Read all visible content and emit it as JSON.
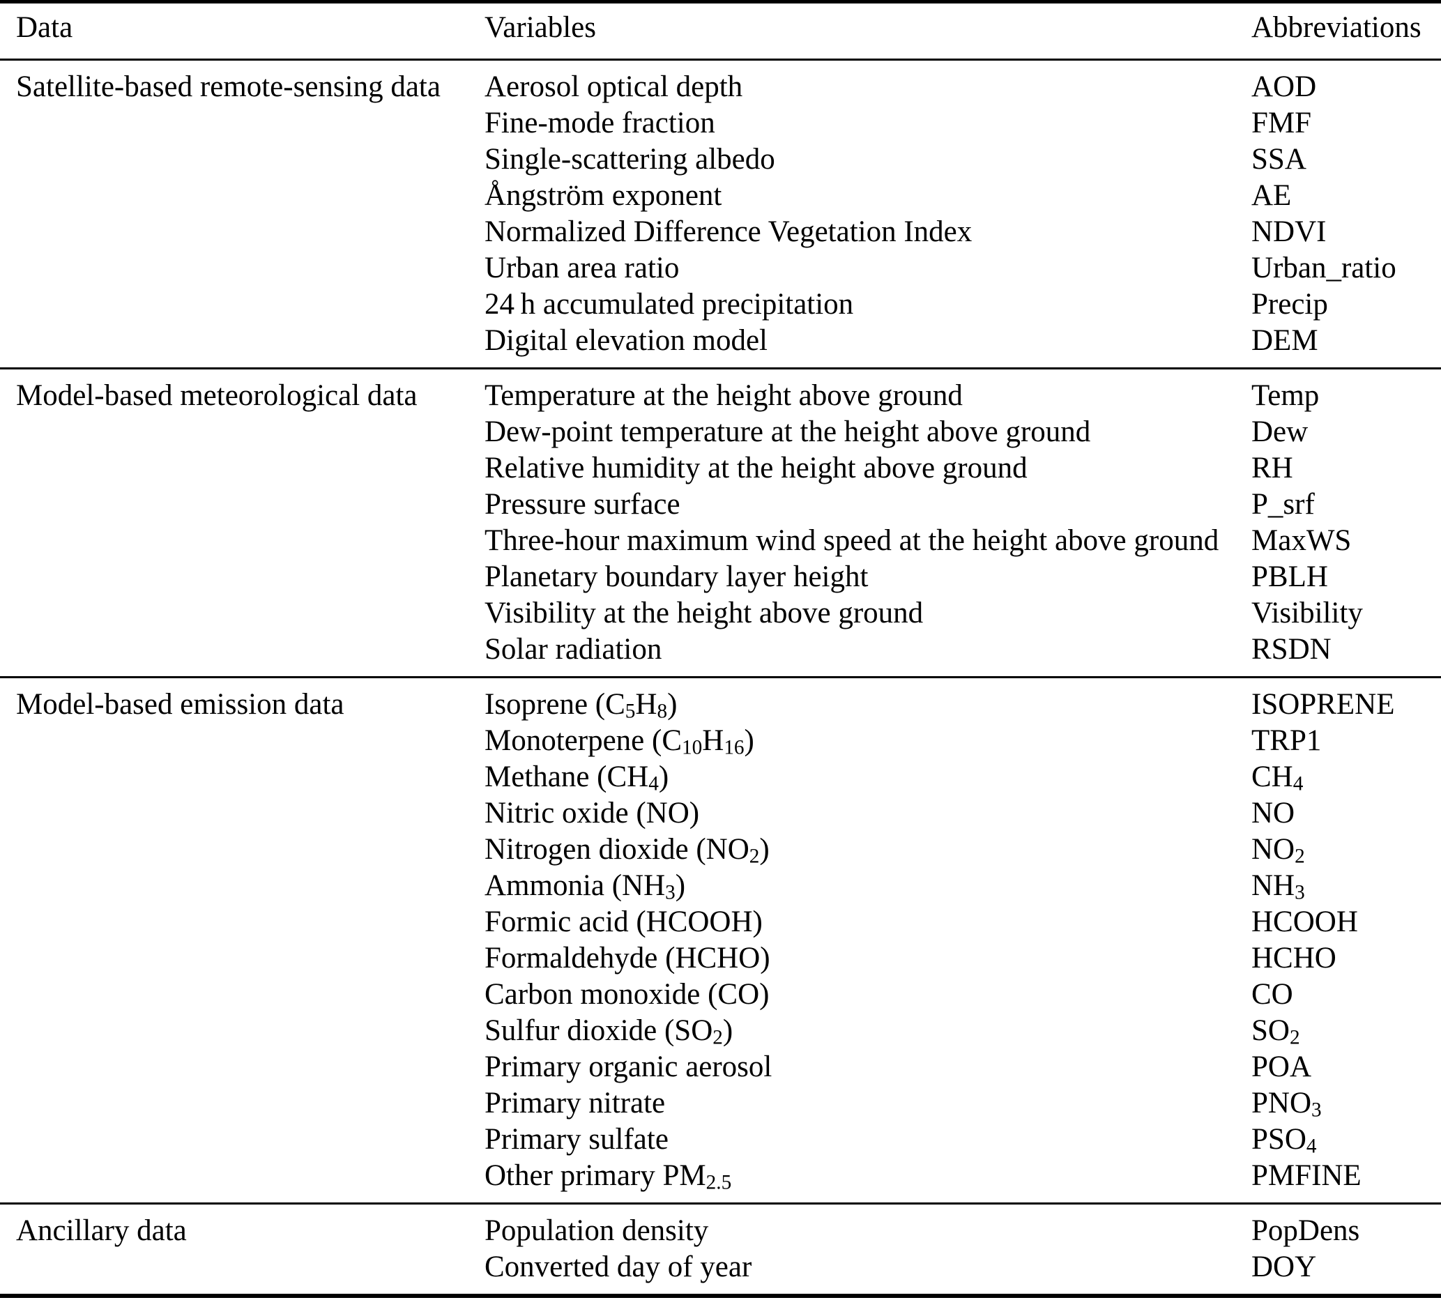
{
  "colors": {
    "background": "#ffffff",
    "text": "#000000",
    "rule": "#000000"
  },
  "table": {
    "columns": [
      "Data",
      "Variables",
      "Abbreviations"
    ],
    "sections": [
      {
        "data_label": "Satellite-based remote-sensing data",
        "rows": [
          {
            "variable": [
              {
                "t": "Aerosol optical depth"
              }
            ],
            "abbreviation": [
              {
                "t": "AOD"
              }
            ]
          },
          {
            "variable": [
              {
                "t": "Fine-mode fraction"
              }
            ],
            "abbreviation": [
              {
                "t": "FMF"
              }
            ]
          },
          {
            "variable": [
              {
                "t": "Single-scattering albedo"
              }
            ],
            "abbreviation": [
              {
                "t": "SSA"
              }
            ]
          },
          {
            "variable": [
              {
                "t": "Ångström exponent"
              }
            ],
            "abbreviation": [
              {
                "t": "AE"
              }
            ]
          },
          {
            "variable": [
              {
                "t": "Normalized Difference Vegetation Index"
              }
            ],
            "abbreviation": [
              {
                "t": "NDVI"
              }
            ]
          },
          {
            "variable": [
              {
                "t": "Urban area ratio"
              }
            ],
            "abbreviation": [
              {
                "t": "Urban_ratio"
              }
            ]
          },
          {
            "variable": [
              {
                "t": "24 h accumulated precipitation"
              }
            ],
            "abbreviation": [
              {
                "t": "Precip"
              }
            ]
          },
          {
            "variable": [
              {
                "t": "Digital elevation model"
              }
            ],
            "abbreviation": [
              {
                "t": "DEM"
              }
            ]
          }
        ]
      },
      {
        "data_label": "Model-based meteorological data",
        "rows": [
          {
            "variable": [
              {
                "t": "Temperature at the height above ground"
              }
            ],
            "abbreviation": [
              {
                "t": "Temp"
              }
            ]
          },
          {
            "variable": [
              {
                "t": "Dew-point temperature at the height above ground"
              }
            ],
            "abbreviation": [
              {
                "t": "Dew"
              }
            ]
          },
          {
            "variable": [
              {
                "t": "Relative humidity at the height above ground"
              }
            ],
            "abbreviation": [
              {
                "t": "RH"
              }
            ]
          },
          {
            "variable": [
              {
                "t": "Pressure surface"
              }
            ],
            "abbreviation": [
              {
                "t": "P_srf"
              }
            ]
          },
          {
            "variable": [
              {
                "t": "Three-hour maximum wind speed at the height above ground"
              }
            ],
            "abbreviation": [
              {
                "t": "MaxWS"
              }
            ]
          },
          {
            "variable": [
              {
                "t": "Planetary boundary layer height"
              }
            ],
            "abbreviation": [
              {
                "t": "PBLH"
              }
            ]
          },
          {
            "variable": [
              {
                "t": "Visibility at the height above ground"
              }
            ],
            "abbreviation": [
              {
                "t": "Visibility"
              }
            ]
          },
          {
            "variable": [
              {
                "t": "Solar radiation"
              }
            ],
            "abbreviation": [
              {
                "t": "RSDN"
              }
            ]
          }
        ]
      },
      {
        "data_label": "Model-based emission data",
        "rows": [
          {
            "variable": [
              {
                "t": "Isoprene (C"
              },
              {
                "t": "5",
                "sub": true
              },
              {
                "t": "H"
              },
              {
                "t": "8",
                "sub": true
              },
              {
                "t": ")"
              }
            ],
            "abbreviation": [
              {
                "t": "ISOPRENE"
              }
            ]
          },
          {
            "variable": [
              {
                "t": "Monoterpene (C"
              },
              {
                "t": "10",
                "sub": true
              },
              {
                "t": "H"
              },
              {
                "t": "16",
                "sub": true
              },
              {
                "t": ")"
              }
            ],
            "abbreviation": [
              {
                "t": "TRP1"
              }
            ]
          },
          {
            "variable": [
              {
                "t": "Methane (CH"
              },
              {
                "t": "4",
                "sub": true
              },
              {
                "t": ")"
              }
            ],
            "abbreviation": [
              {
                "t": "CH"
              },
              {
                "t": "4",
                "sub": true
              }
            ]
          },
          {
            "variable": [
              {
                "t": "Nitric oxide (NO)"
              }
            ],
            "abbreviation": [
              {
                "t": "NO"
              }
            ]
          },
          {
            "variable": [
              {
                "t": "Nitrogen dioxide (NO"
              },
              {
                "t": "2",
                "sub": true
              },
              {
                "t": ")"
              }
            ],
            "abbreviation": [
              {
                "t": "NO"
              },
              {
                "t": "2",
                "sub": true
              }
            ]
          },
          {
            "variable": [
              {
                "t": "Ammonia (NH"
              },
              {
                "t": "3",
                "sub": true
              },
              {
                "t": ")"
              }
            ],
            "abbreviation": [
              {
                "t": "NH"
              },
              {
                "t": "3",
                "sub": true
              }
            ]
          },
          {
            "variable": [
              {
                "t": "Formic acid (HCOOH)"
              }
            ],
            "abbreviation": [
              {
                "t": "HCOOH"
              }
            ]
          },
          {
            "variable": [
              {
                "t": "Formaldehyde (HCHO)"
              }
            ],
            "abbreviation": [
              {
                "t": "HCHO"
              }
            ]
          },
          {
            "variable": [
              {
                "t": "Carbon monoxide (CO)"
              }
            ],
            "abbreviation": [
              {
                "t": "CO"
              }
            ]
          },
          {
            "variable": [
              {
                "t": "Sulfur dioxide (SO"
              },
              {
                "t": "2",
                "sub": true
              },
              {
                "t": ")"
              }
            ],
            "abbreviation": [
              {
                "t": "SO"
              },
              {
                "t": "2",
                "sub": true
              }
            ]
          },
          {
            "variable": [
              {
                "t": "Primary organic aerosol"
              }
            ],
            "abbreviation": [
              {
                "t": "POA"
              }
            ]
          },
          {
            "variable": [
              {
                "t": "Primary nitrate"
              }
            ],
            "abbreviation": [
              {
                "t": "PNO"
              },
              {
                "t": "3",
                "sub": true
              }
            ]
          },
          {
            "variable": [
              {
                "t": "Primary sulfate"
              }
            ],
            "abbreviation": [
              {
                "t": "PSO"
              },
              {
                "t": "4",
                "sub": true
              }
            ]
          },
          {
            "variable": [
              {
                "t": "Other primary PM"
              },
              {
                "t": "2.5",
                "sub": true
              }
            ],
            "abbreviation": [
              {
                "t": "PMFINE"
              }
            ]
          }
        ]
      },
      {
        "data_label": "Ancillary data",
        "rows": [
          {
            "variable": [
              {
                "t": "Population density"
              }
            ],
            "abbreviation": [
              {
                "t": "PopDens"
              }
            ]
          },
          {
            "variable": [
              {
                "t": "Converted day of year"
              }
            ],
            "abbreviation": [
              {
                "t": "DOY"
              }
            ]
          }
        ]
      }
    ]
  }
}
